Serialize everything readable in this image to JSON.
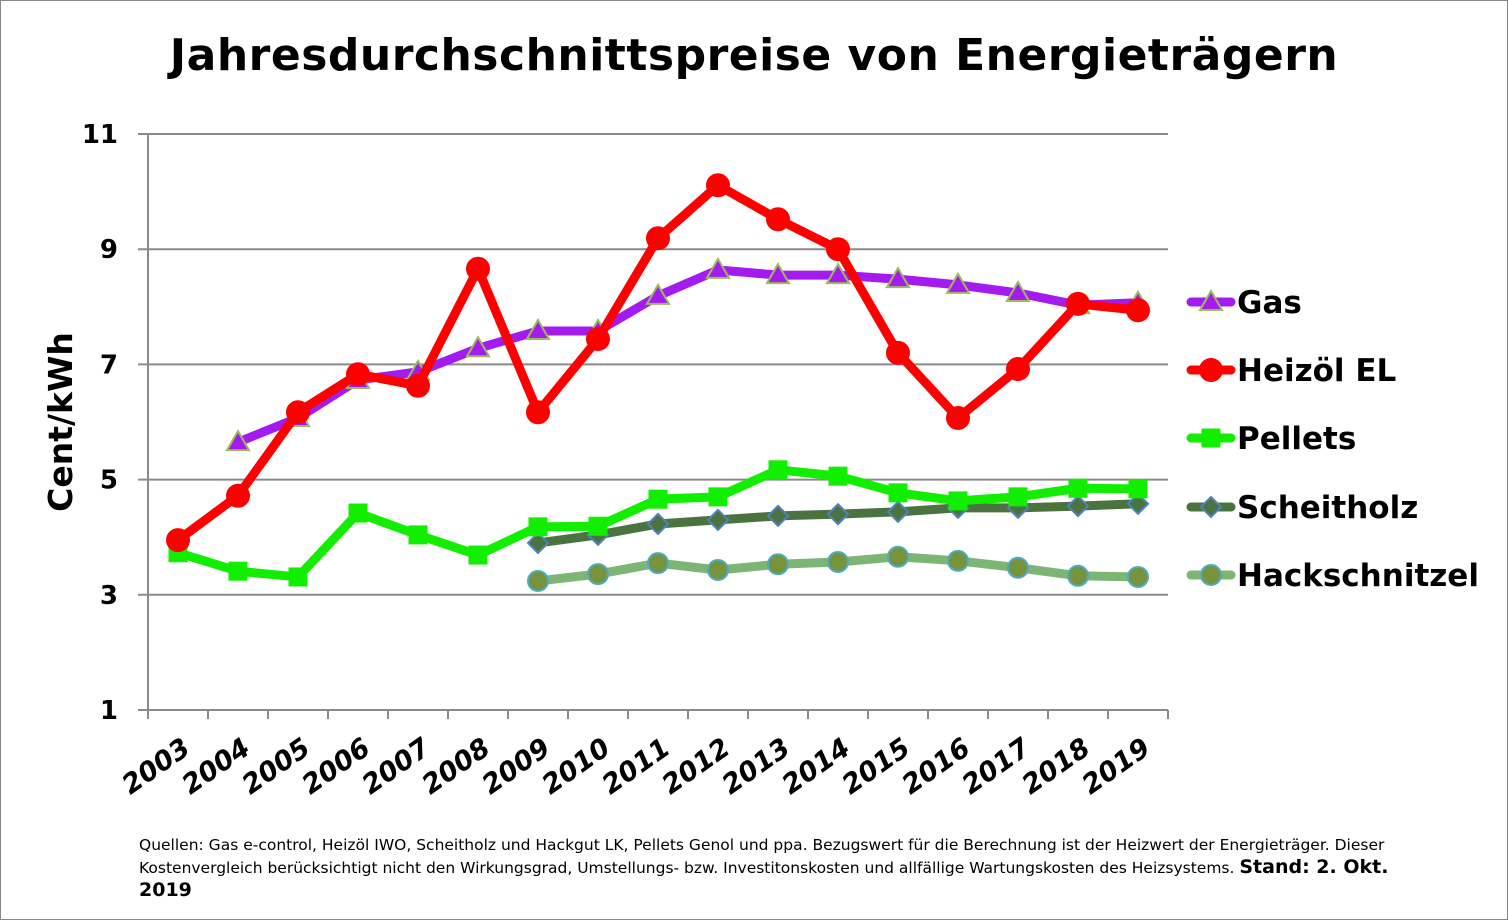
{
  "chart_data": {
    "type": "line",
    "title": "Jahresdurchschnittspreise von Energieträgern",
    "xlabel": "",
    "ylabel": "Cent/kWh",
    "ylim": [
      1,
      11
    ],
    "yticks": [
      1,
      3,
      5,
      7,
      9,
      11
    ],
    "grid": true,
    "legend_position": "right",
    "categories": [
      "2003",
      "2004",
      "2005",
      "2006",
      "2007",
      "2008",
      "2009",
      "2010",
      "2011",
      "2012",
      "2013",
      "2014",
      "2015",
      "2016",
      "2017",
      "2018",
      "2019"
    ],
    "series": [
      {
        "name": "Gas",
        "color": "#A41BF0",
        "marker": "triangle",
        "marker_fill": "#A41BF0",
        "marker_stroke": "#9BBB59",
        "values": [
          null,
          5.65,
          6.07,
          6.73,
          6.87,
          7.28,
          7.58,
          7.58,
          8.19,
          8.64,
          8.55,
          8.55,
          8.48,
          8.38,
          8.24,
          8.03,
          8.07
        ]
      },
      {
        "name": "Heizöl EL",
        "color": "#FF0000",
        "marker": "circle",
        "marker_fill": "#FF0000",
        "marker_stroke": "#FF0000",
        "values": [
          3.95,
          4.72,
          6.17,
          6.83,
          6.63,
          8.66,
          6.17,
          7.44,
          9.19,
          10.11,
          9.52,
          9.0,
          7.2,
          6.07,
          6.92,
          8.05,
          7.94
        ]
      },
      {
        "name": "Pellets",
        "color": "#12EE00",
        "marker": "square",
        "marker_fill": "#12EE00",
        "marker_stroke": "#12EE00",
        "values": [
          3.73,
          3.41,
          3.31,
          4.42,
          4.04,
          3.69,
          4.18,
          4.19,
          4.66,
          4.7,
          5.17,
          5.06,
          4.77,
          4.63,
          4.7,
          4.85,
          4.84
        ]
      },
      {
        "name": "Scheitholz",
        "color": "#4A7340",
        "marker": "diamond",
        "marker_fill": "#4A7340",
        "marker_stroke": "#4F81BD",
        "values": [
          null,
          null,
          null,
          null,
          null,
          null,
          3.9,
          4.04,
          4.23,
          4.3,
          4.37,
          4.4,
          4.44,
          4.51,
          4.51,
          4.54,
          4.58
        ]
      },
      {
        "name": "Hackschnitzel",
        "color": "#7DB574",
        "marker": "circle",
        "marker_fill": "#77933C",
        "marker_stroke": "#4BACC6",
        "values": [
          null,
          null,
          null,
          null,
          null,
          null,
          3.24,
          3.36,
          3.55,
          3.43,
          3.53,
          3.57,
          3.66,
          3.59,
          3.47,
          3.33,
          3.31
        ]
      }
    ],
    "footnote": {
      "text": "Quellen: Gas e-control, Heizöl IWO, Scheitholz und Hackgut LK, Pellets Genol und ppa. Bezugswert für die Berechnung ist der Heizwert der Energieträger. Dieser Kostenvergleich berücksichtigt nicht den Wirkungsgrad, Umstellungs- bzw. Investitonskosten und allfällige Wartungskosten des Heizsystems.",
      "stand": "Stand: 2. Okt. 2019"
    }
  },
  "colors": {
    "grid": "#8A8A8A",
    "axis": "#8A8A8A"
  }
}
